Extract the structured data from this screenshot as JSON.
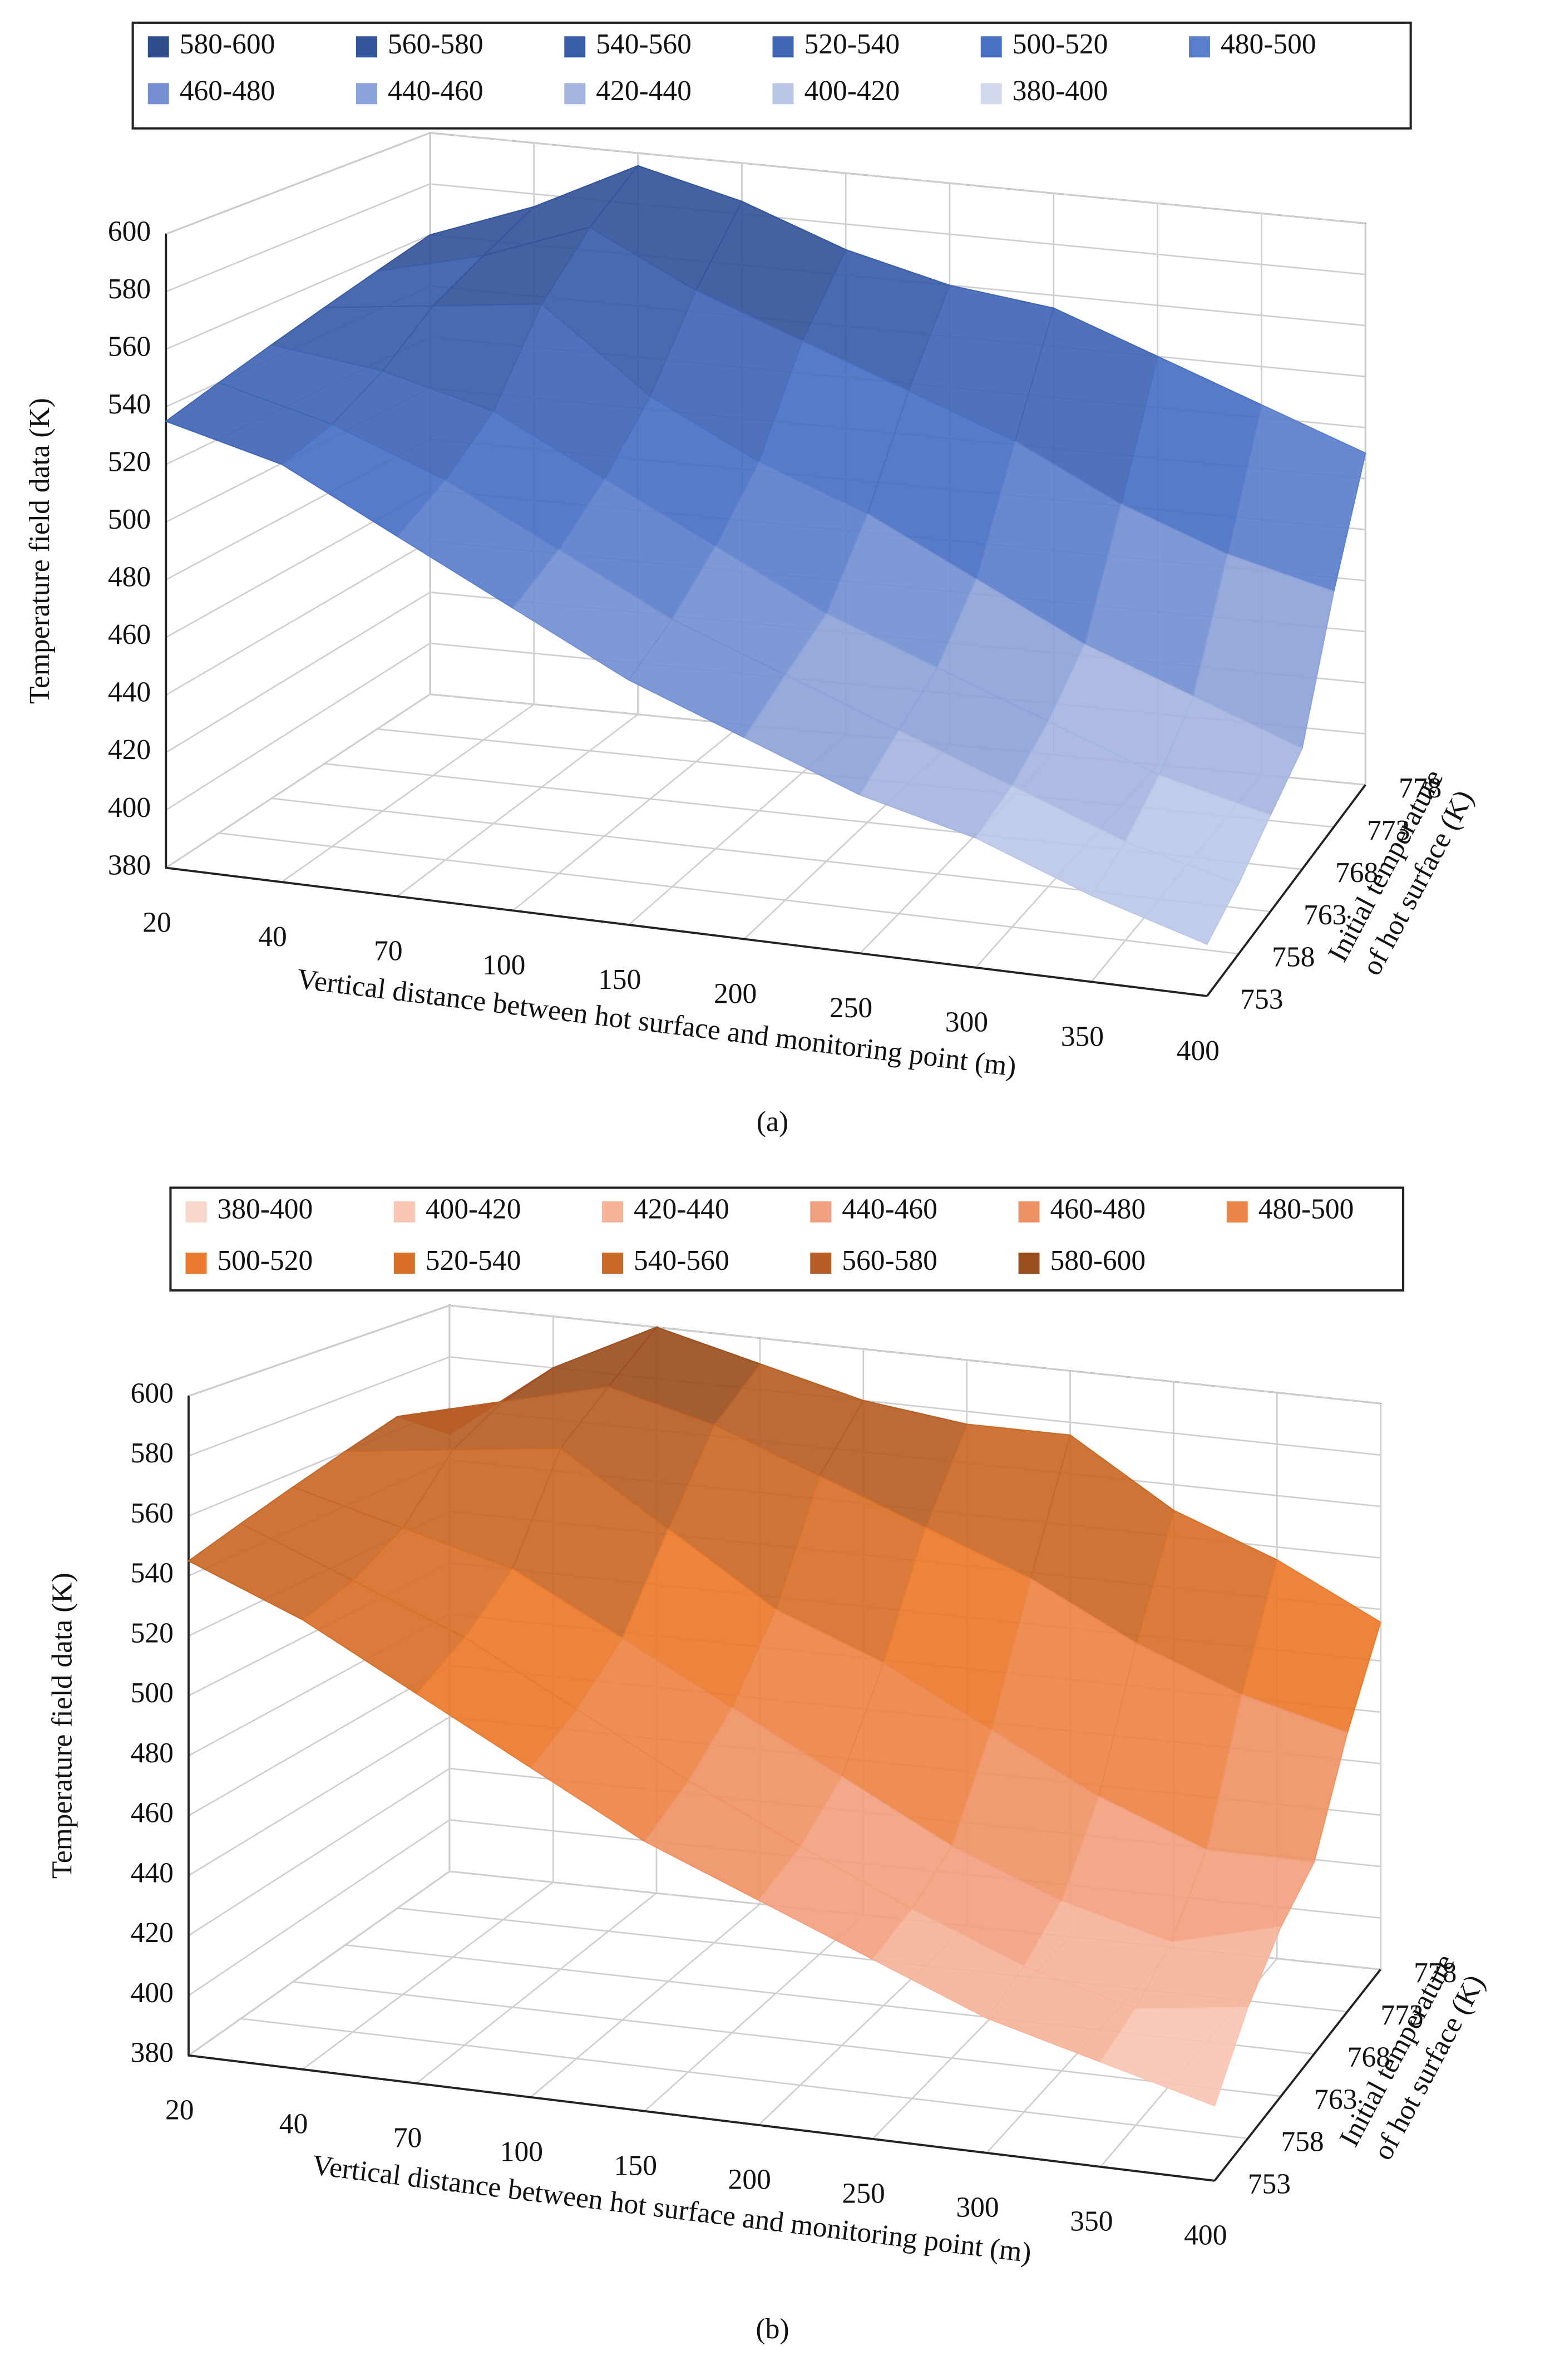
{
  "chart_data": [
    {
      "type": "surface3d",
      "caption": "(a)",
      "legend": [
        {
          "name": "580-600",
          "color": "#2e4d8c"
        },
        {
          "name": "560-580",
          "color": "#34559a"
        },
        {
          "name": "540-560",
          "color": "#3a5da8"
        },
        {
          "name": "520-540",
          "color": "#4166b5"
        },
        {
          "name": "500-520",
          "color": "#4a70c4"
        },
        {
          "name": "480-500",
          "color": "#5b7fcc"
        },
        {
          "name": "460-480",
          "color": "#7490d2"
        },
        {
          "name": "440-460",
          "color": "#8ea3d9"
        },
        {
          "name": "420-440",
          "color": "#a6b5e0"
        },
        {
          "name": "400-420",
          "color": "#bcc7e8"
        },
        {
          "name": "380-400",
          "color": "#d3daf0"
        }
      ],
      "xlabel": "Vertical distance between hot surface and monitoring point (m)",
      "ylabel": [
        "Initial temperature",
        "of hot surface (K)"
      ],
      "zlabel": "Temperature field data (K)",
      "categories": [
        20,
        40,
        70,
        100,
        150,
        200,
        250,
        300,
        350,
        400
      ],
      "depth_categories": [
        753,
        758,
        763,
        768,
        773,
        778
      ],
      "zlim": [
        380,
        600
      ],
      "zticks": [
        380,
        400,
        420,
        440,
        460,
        480,
        500,
        520,
        540,
        560,
        580,
        600
      ],
      "values": [
        [
          535,
          525,
          505,
          485,
          465,
          450,
          435,
          425,
          410,
          398
        ],
        [
          540,
          530,
          515,
          495,
          475,
          460,
          445,
          430,
          415,
          405
        ],
        [
          545,
          540,
          530,
          510,
          490,
          470,
          455,
          440,
          425,
          415
        ],
        [
          550,
          555,
          560,
          530,
          510,
          495,
          475,
          455,
          440,
          425
        ],
        [
          555,
          565,
          580,
          560,
          545,
          530,
          515,
          495,
          480,
          470
        ],
        [
          560,
          575,
          595,
          585,
          570,
          560,
          555,
          540,
          525,
          510
        ]
      ]
    },
    {
      "type": "surface3d",
      "caption": "(b)",
      "legend": [
        {
          "name": "380-400",
          "color": "#fbd7cb"
        },
        {
          "name": "400-420",
          "color": "#f8c6b3"
        },
        {
          "name": "420-440",
          "color": "#f5b49a"
        },
        {
          "name": "440-460",
          "color": "#f2a180"
        },
        {
          "name": "460-480",
          "color": "#ef9266"
        },
        {
          "name": "480-500",
          "color": "#ed8447"
        },
        {
          "name": "500-520",
          "color": "#ea7a2e"
        },
        {
          "name": "520-540",
          "color": "#d8702a"
        },
        {
          "name": "540-560",
          "color": "#c96827"
        },
        {
          "name": "560-580",
          "color": "#b65e25"
        },
        {
          "name": "580-600",
          "color": "#9b4f20"
        }
      ],
      "xlabel": "Vertical distance between hot surface and monitoring point (m)",
      "ylabel": [
        "Initial temperature",
        "of hot surface (K)"
      ],
      "zlabel": "Temperature field data (K)",
      "categories": [
        20,
        40,
        70,
        100,
        150,
        200,
        250,
        300,
        350,
        400
      ],
      "depth_categories": [
        753,
        758,
        763,
        768,
        773,
        778
      ],
      "zlim": [
        380,
        600
      ],
      "zticks": [
        380,
        400,
        420,
        440,
        460,
        480,
        500,
        520,
        540,
        560,
        580,
        600
      ],
      "values": [
        [
          545,
          530,
          510,
          490,
          470,
          455,
          440,
          425,
          415,
          405
        ],
        [
          550,
          535,
          520,
          500,
          480,
          462,
          445,
          430,
          420,
          425
        ],
        [
          555,
          545,
          535,
          515,
          495,
          475,
          455,
          440,
          430,
          440
        ],
        [
          560,
          565,
          570,
          545,
          520,
          505,
          485,
          465,
          450,
          450
        ],
        [
          565,
          575,
          585,
          575,
          560,
          545,
          530,
          510,
          495,
          485
        ],
        [
          550,
          580,
          600,
          590,
          580,
          575,
          575,
          550,
          535,
          515
        ]
      ]
    }
  ]
}
